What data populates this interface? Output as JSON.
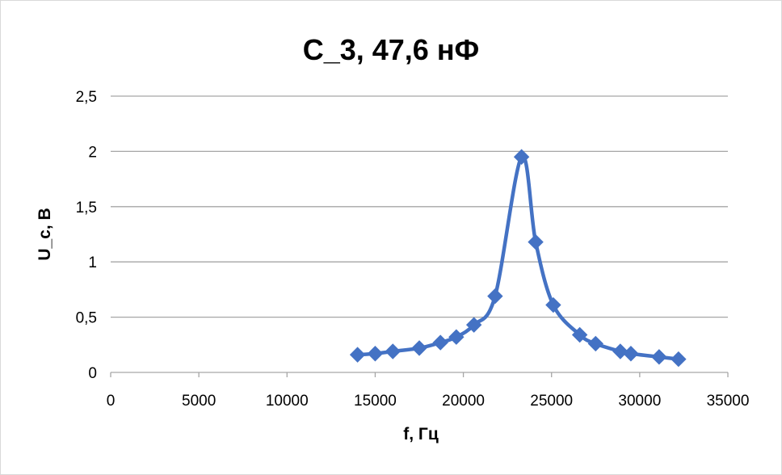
{
  "chart_data": {
    "type": "scatter",
    "title": "C_3, 47,6  нФ",
    "xlabel": "f, Гц",
    "ylabel": "U_c, В",
    "xlim": [
      0,
      35000
    ],
    "ylim": [
      0,
      2.5
    ],
    "x_ticks": [
      "0",
      "5000",
      "10000",
      "15000",
      "20000",
      "25000",
      "30000",
      "35000"
    ],
    "y_ticks": [
      "0",
      "0,5",
      "1",
      "1,5",
      "2",
      "2,5"
    ],
    "grid": "horizontal",
    "line_style": "smooth",
    "marker": "diamond",
    "series": [
      {
        "color": "#4472c4",
        "x": [
          14000,
          15000,
          16000,
          17500,
          18700,
          19600,
          20600,
          21800,
          23300,
          24100,
          25100,
          26600,
          27500,
          28900,
          29500,
          31100,
          32200
        ],
        "y": [
          0.16,
          0.17,
          0.19,
          0.22,
          0.27,
          0.32,
          0.43,
          0.69,
          1.95,
          1.18,
          0.61,
          0.34,
          0.26,
          0.19,
          0.17,
          0.14,
          0.12
        ]
      }
    ]
  }
}
